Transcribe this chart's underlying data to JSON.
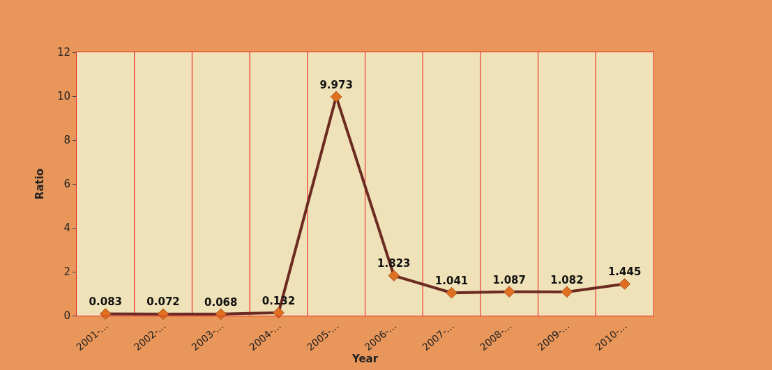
{
  "chart_data": {
    "type": "line",
    "xlabel": "Year",
    "ylabel": "Ratio",
    "categories": [
      "2001-...",
      "2002-...",
      "2003-...",
      "2004-...",
      "2005-...",
      "2006-...",
      "2007-...",
      "2008-...",
      "2009-...",
      "2010-..."
    ],
    "series": [
      {
        "color": "#6b2a22",
        "values": [
          0.083,
          0.072,
          0.068,
          0.132,
          9.973,
          1.823,
          1.041,
          1.087,
          1.082,
          1.445
        ]
      }
    ],
    "ylim": [
      0,
      12
    ],
    "yticks": [
      0,
      2,
      4,
      6,
      8,
      10,
      12
    ],
    "grid": "x",
    "legend": false,
    "marker": "diamond",
    "line_style": "solid",
    "data_labels": true
  }
}
